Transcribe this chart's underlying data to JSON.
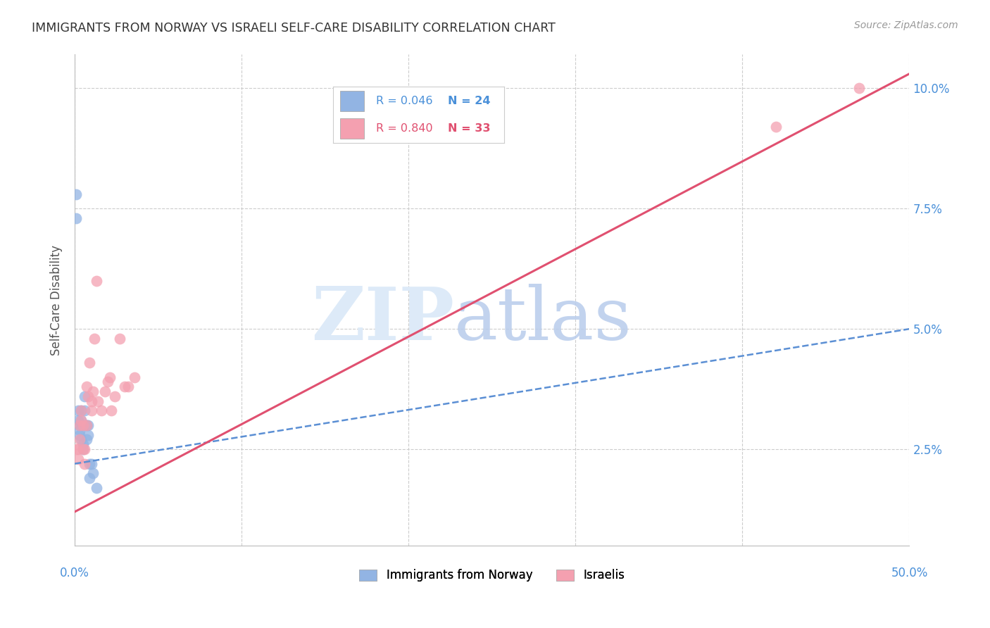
{
  "title": "IMMIGRANTS FROM NORWAY VS ISRAELI SELF-CARE DISABILITY CORRELATION CHART",
  "source": "Source: ZipAtlas.com",
  "ylabel": "Self-Care Disability",
  "y_ticks": [
    0.025,
    0.05,
    0.075,
    0.1
  ],
  "y_tick_labels": [
    "2.5%",
    "5.0%",
    "7.5%",
    "10.0%"
  ],
  "x_lim": [
    0.0,
    0.5
  ],
  "y_lim": [
    0.005,
    0.107
  ],
  "legend_blue_r": "R = 0.046",
  "legend_blue_n": "N = 24",
  "legend_pink_r": "R = 0.840",
  "legend_pink_n": "N = 33",
  "legend_label_blue": "Immigrants from Norway",
  "legend_label_pink": "Israelis",
  "blue_color": "#92b4e3",
  "pink_color": "#f4a0b0",
  "blue_line_color": "#5b8fd4",
  "pink_line_color": "#e05070",
  "blue_scatter_x": [
    0.001,
    0.001,
    0.002,
    0.002,
    0.003,
    0.003,
    0.003,
    0.004,
    0.004,
    0.004,
    0.005,
    0.005,
    0.005,
    0.006,
    0.006,
    0.007,
    0.007,
    0.008,
    0.008,
    0.009,
    0.009,
    0.01,
    0.011,
    0.013
  ],
  "blue_scatter_y": [
    0.078,
    0.073,
    0.031,
    0.033,
    0.03,
    0.029,
    0.028,
    0.033,
    0.031,
    0.027,
    0.03,
    0.026,
    0.025,
    0.036,
    0.033,
    0.03,
    0.027,
    0.03,
    0.028,
    0.022,
    0.019,
    0.022,
    0.02,
    0.017
  ],
  "pink_scatter_x": [
    0.001,
    0.002,
    0.002,
    0.003,
    0.003,
    0.004,
    0.004,
    0.005,
    0.005,
    0.006,
    0.006,
    0.007,
    0.007,
    0.008,
    0.009,
    0.01,
    0.01,
    0.011,
    0.012,
    0.013,
    0.014,
    0.016,
    0.018,
    0.02,
    0.021,
    0.022,
    0.024,
    0.027,
    0.03,
    0.032,
    0.036,
    0.42,
    0.47
  ],
  "pink_scatter_y": [
    0.025,
    0.023,
    0.025,
    0.027,
    0.03,
    0.031,
    0.033,
    0.03,
    0.025,
    0.022,
    0.025,
    0.03,
    0.038,
    0.036,
    0.043,
    0.033,
    0.035,
    0.037,
    0.048,
    0.06,
    0.035,
    0.033,
    0.037,
    0.039,
    0.04,
    0.033,
    0.036,
    0.048,
    0.038,
    0.038,
    0.04,
    0.092,
    0.1
  ],
  "blue_trend_x": [
    0.0,
    0.5
  ],
  "blue_trend_y": [
    0.022,
    0.05
  ],
  "pink_trend_x": [
    0.0,
    0.5
  ],
  "pink_trend_y": [
    0.012,
    0.103
  ],
  "grid_color": "#cccccc",
  "background_color": "#ffffff",
  "title_fontsize": 12,
  "tick_label_color": "#4a90d9",
  "axis_label_color": "#555555"
}
